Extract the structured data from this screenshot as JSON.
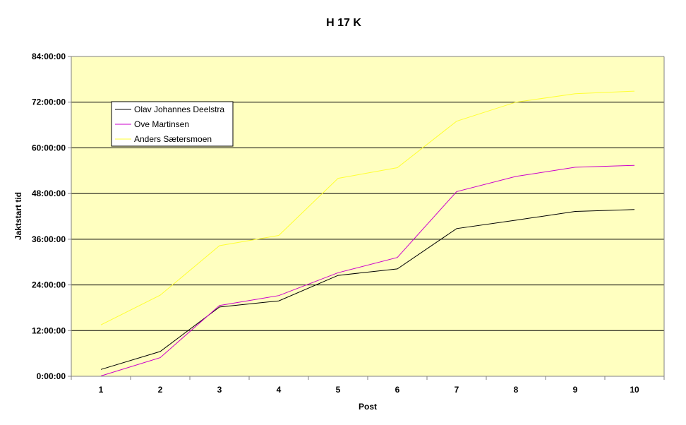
{
  "chart_data": {
    "type": "line",
    "title": "H 17 K",
    "xlabel": "Post",
    "ylabel": "Jaktstart tid",
    "categories": [
      "1",
      "2",
      "3",
      "4",
      "5",
      "6",
      "7",
      "8",
      "9",
      "10"
    ],
    "y_unit": "hours",
    "ylim": [
      0,
      84
    ],
    "y_ticks": [
      0,
      12,
      24,
      36,
      48,
      60,
      72,
      84
    ],
    "y_tick_labels": [
      "0:00:00",
      "12:00:00",
      "24:00:00",
      "36:00:00",
      "48:00:00",
      "60:00:00",
      "72:00:00",
      "84:00:00"
    ],
    "grid": "horizontal major gridlines",
    "plot_background": "#FFFFC0",
    "legend": "top-left inside plot",
    "series": [
      {
        "name": "Olav Johannes Deelstra",
        "color": "#000000",
        "values": [
          1.8,
          6.5,
          18.2,
          19.8,
          26.5,
          28.2,
          38.8,
          41.0,
          43.3,
          43.8
        ]
      },
      {
        "name": "Ove Martinsen",
        "color": "#CC00CC",
        "values": [
          0.1,
          4.9,
          18.6,
          21.2,
          27.2,
          31.2,
          48.5,
          52.5,
          54.9,
          55.4
        ]
      },
      {
        "name": "Anders Sætersmoen",
        "color": "#FFFF33",
        "values": [
          13.5,
          21.3,
          34.3,
          37.0,
          52.0,
          54.8,
          67.0,
          72.0,
          74.2,
          74.9
        ]
      }
    ]
  }
}
